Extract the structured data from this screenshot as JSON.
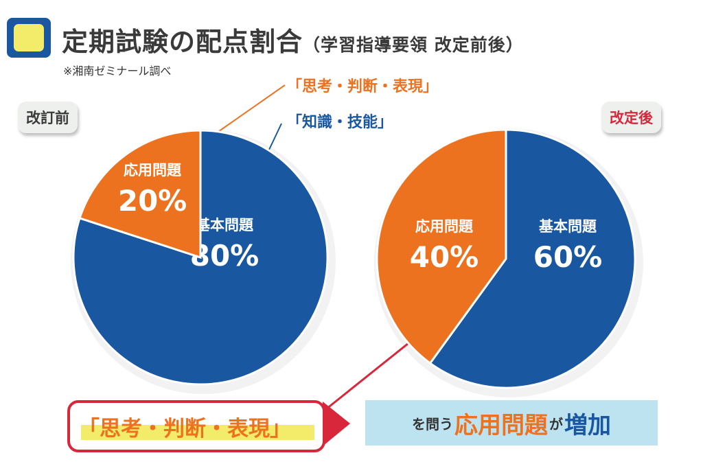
{
  "header": {
    "title": "定期試験の配点割合",
    "subtitle": "（学習指導要領 改定前後）",
    "source": "※湘南ゼミナール調べ"
  },
  "legend": {
    "orange": "「思考・判断・表現」",
    "blue": "「知識・技能」"
  },
  "colors": {
    "orange": "#ec7220",
    "blue": "#1957a0"
  },
  "chart_data": [
    {
      "type": "pie",
      "title": "改訂前",
      "slices": [
        {
          "label": "基本問題",
          "value": 80,
          "display": "80%",
          "color": "#1957a0"
        },
        {
          "label": "応用問題",
          "value": 20,
          "display": "20%",
          "color": "#ec7220"
        }
      ]
    },
    {
      "type": "pie",
      "title": "改定後",
      "slices": [
        {
          "label": "基本問題",
          "value": 60,
          "display": "60%",
          "color": "#1957a0"
        },
        {
          "label": "応用問題",
          "value": 40,
          "display": "40%",
          "color": "#ec7220"
        }
      ]
    }
  ],
  "footer": {
    "callout": "「思考・判断・表現」",
    "result_pre": "を問う",
    "result_orange": "応用問題",
    "result_mid": "が",
    "result_blue": "増加"
  }
}
